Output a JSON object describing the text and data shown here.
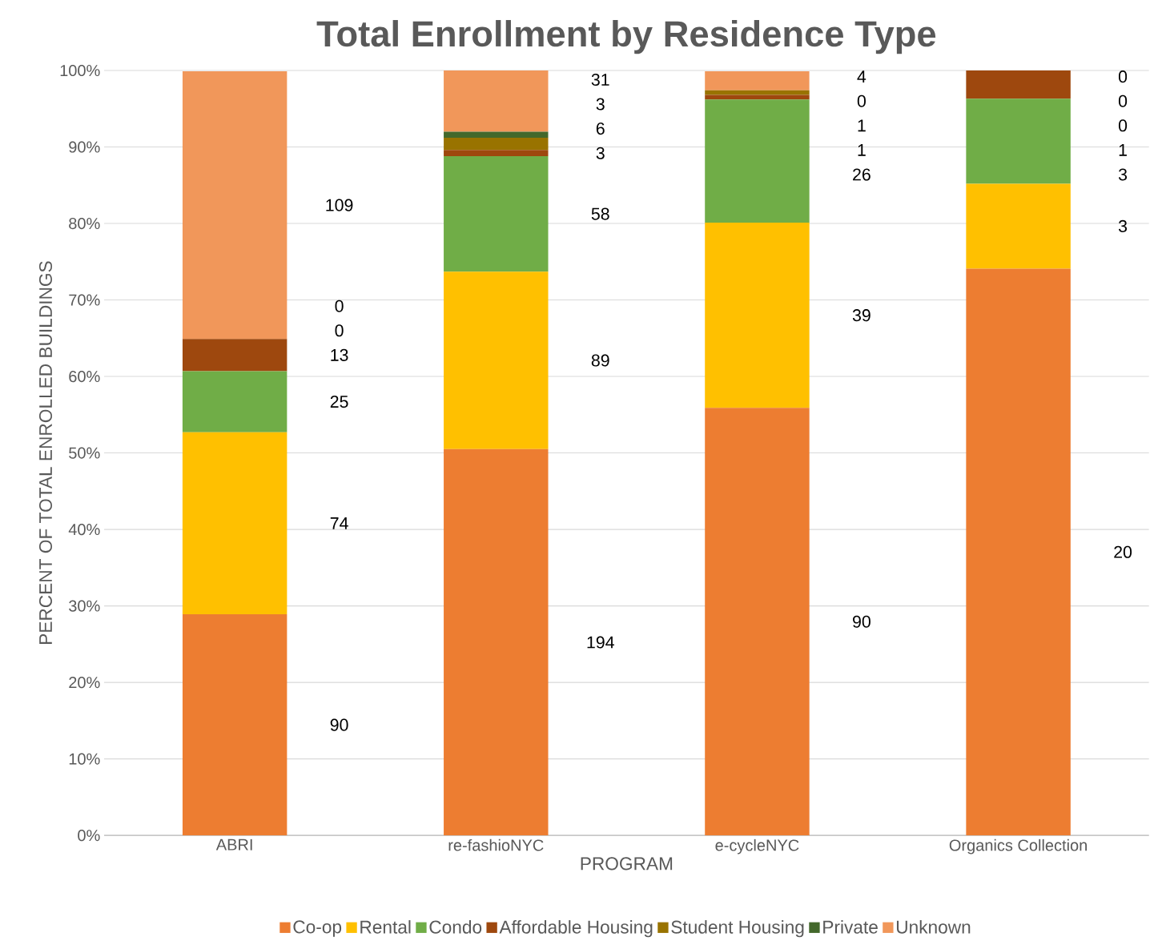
{
  "chart_data": {
    "type": "bar",
    "stacked": true,
    "title": "Total Enrollment by Residence Type",
    "xlabel": "PROGRAM",
    "ylabel": "PERCENT OF TOTAL ENROLLED BUILDINGS",
    "categories": [
      "ABRI",
      "re-fashioNYC",
      "e-cycleNYC",
      "Organics Collection"
    ],
    "series": [
      {
        "name": "Co-op",
        "color": "#ed7d31",
        "values": [
          28.9,
          50.5,
          55.9,
          74.1
        ]
      },
      {
        "name": "Rental",
        "color": "#ffc000",
        "values": [
          23.8,
          23.2,
          24.2,
          11.1
        ]
      },
      {
        "name": "Condo",
        "color": "#70ad47",
        "values": [
          8.0,
          15.1,
          16.1,
          11.1
        ]
      },
      {
        "name": "Affordable Housing",
        "color": "#9e480e",
        "values": [
          4.2,
          0.8,
          0.6,
          3.7
        ]
      },
      {
        "name": "Student Housing",
        "color": "#997300",
        "values": [
          0,
          1.6,
          0.6,
          0
        ]
      },
      {
        "name": "Private",
        "color": "#43682b",
        "values": [
          0,
          0.8,
          0,
          0
        ]
      },
      {
        "name": "Unknown",
        "color": "#f1975a",
        "values": [
          35.0,
          8.0,
          2.5,
          0
        ]
      }
    ],
    "annotations": [
      "90",
      "74",
      "25",
      "13",
      "0",
      "0",
      "109",
      "194",
      "89",
      "58",
      "3",
      "6",
      "3",
      "31",
      "90",
      "39",
      "26",
      "1",
      "1",
      "0",
      "4",
      "20",
      "3",
      "3",
      "1",
      "0",
      "0",
      "0"
    ],
    "ylim": [
      0,
      100
    ],
    "yticks": [
      {
        "value": 0,
        "label": "0%"
      },
      {
        "value": 10,
        "label": "10%"
      },
      {
        "value": 20,
        "label": "20%"
      },
      {
        "value": 30,
        "label": "30%"
      },
      {
        "value": 40,
        "label": "40%"
      },
      {
        "value": 50,
        "label": "50%"
      },
      {
        "value": 60,
        "label": "60%"
      },
      {
        "value": 70,
        "label": "70%"
      },
      {
        "value": 80,
        "label": "80%"
      },
      {
        "value": 90,
        "label": "90%"
      },
      {
        "value": 100,
        "label": "100%"
      }
    ],
    "grid": "y",
    "legend": "bottom"
  }
}
